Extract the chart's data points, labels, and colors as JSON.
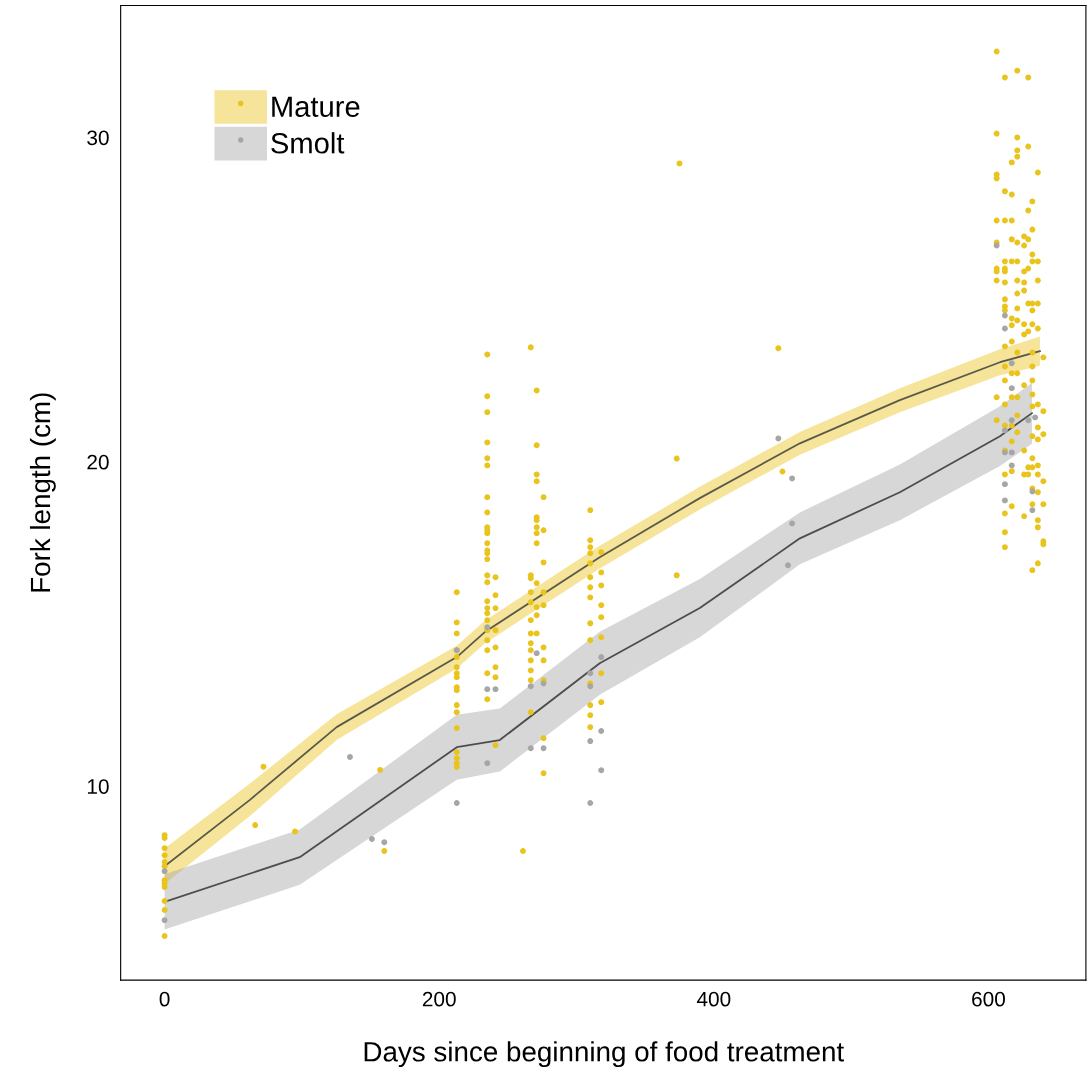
{
  "chart_data": {
    "type": "scatter",
    "xlabel": "Days since beginning of food treatment",
    "ylabel": "Fork length (cm)",
    "xlim": [
      -32,
      671
    ],
    "ylim": [
      4.02,
      34.07
    ],
    "xticks": [
      0,
      200,
      400,
      600
    ],
    "yticks": [
      10,
      20,
      30
    ],
    "grid": false,
    "legend": "top left",
    "marker": "circle",
    "series": [
      {
        "name": "Mature",
        "color": "#e8c41c",
        "x": [
          0,
          0,
          0,
          0,
          0,
          0,
          0,
          0,
          0,
          0,
          0,
          0,
          72,
          66,
          95,
          157,
          160,
          261,
          375,
          373,
          373,
          447,
          450,
          212.8,
          212.8,
          212.8,
          212.8,
          212.8,
          212.8,
          212.8,
          212.8,
          212.8,
          212.8,
          212.8,
          212.8,
          212.8,
          212.8,
          212.8,
          212.8,
          212.8,
          235,
          235,
          235,
          235,
          235,
          235,
          235,
          235,
          235,
          235,
          235,
          235,
          235,
          235,
          235,
          235,
          235,
          235,
          235,
          235,
          235,
          235,
          235,
          235,
          235,
          235,
          241,
          241,
          241,
          241,
          241,
          241,
          241,
          241,
          266.7,
          266.7,
          266.7,
          266.7,
          266.7,
          266.7,
          266.7,
          266.7,
          266.7,
          266.7,
          266.7,
          266.7,
          266.7,
          271,
          271,
          271,
          271,
          271,
          271,
          271,
          271,
          271,
          271,
          271,
          271,
          271,
          276,
          276,
          276,
          276,
          276,
          276,
          276,
          276,
          276,
          276,
          310,
          310,
          310,
          310,
          310,
          310,
          310,
          310,
          310,
          310,
          310,
          310,
          310,
          310,
          318,
          318,
          318,
          318,
          318,
          318,
          318,
          318,
          606,
          606,
          606,
          606,
          606,
          606,
          606,
          606,
          606,
          606,
          606,
          612,
          612,
          612,
          612,
          612,
          612,
          612,
          612,
          612,
          612,
          612,
          612,
          612,
          612,
          612,
          612,
          612,
          612,
          612,
          612,
          617,
          617,
          617,
          617,
          617,
          617,
          617,
          617,
          617,
          617,
          617,
          617,
          617,
          617,
          621,
          621,
          621,
          621,
          621,
          621,
          621,
          621,
          621,
          621,
          621,
          621,
          621,
          621,
          621,
          626,
          626,
          626,
          626,
          626,
          626,
          626,
          626,
          626,
          626,
          626,
          629,
          629,
          629,
          629,
          629,
          629,
          629,
          629,
          629,
          632,
          632,
          632,
          632,
          632,
          632,
          632,
          632,
          632,
          632,
          632,
          632,
          632,
          632,
          632,
          632,
          632,
          632,
          636,
          636,
          636,
          636,
          636,
          636,
          636,
          636,
          636,
          636,
          636,
          636,
          636,
          636,
          640,
          640,
          640,
          640,
          640,
          640,
          640
        ],
        "values": [
          8.49,
          8.4,
          8.09,
          7.87,
          7.66,
          7.53,
          7.1,
          7.0,
          6.89,
          6.46,
          6.18,
          5.38,
          10.6,
          8.8,
          8.6,
          10.5,
          8.0,
          8.0,
          29.2,
          16.5,
          20.1,
          23.5,
          19.7,
          15.98,
          15.05,
          14.71,
          14.19,
          13.98,
          13.67,
          13.48,
          13.36,
          13.05,
          12.96,
          12.5,
          12.28,
          11.79,
          11.05,
          10.86,
          10.71,
          10.59,
          23.31,
          22.02,
          21.53,
          20.6,
          20.11,
          19.89,
          18.91,
          18.44,
          17.98,
          17.89,
          17.8,
          17.49,
          17.27,
          17.18,
          17.0,
          16.5,
          16.29,
          15.7,
          15.49,
          15.33,
          15.12,
          14.81,
          14.5,
          14.19,
          13.48,
          12.68,
          16.44,
          15.89,
          15.49,
          14.81,
          14.28,
          13.67,
          13.36,
          11.26,
          23.53,
          16.5,
          16.41,
          15.98,
          15.67,
          15.12,
          14.71,
          14.41,
          14.19,
          13.88,
          13.57,
          13.27,
          12.28,
          22.2,
          20.51,
          19.61,
          19.4,
          18.29,
          18.2,
          17.98,
          17.8,
          17.49,
          16.26,
          15.52,
          15.27,
          14.71,
          18.91,
          17.89,
          16.9,
          15.98,
          15.58,
          14.28,
          13.88,
          13.27,
          11.48,
          10.4,
          18.51,
          17.58,
          17.37,
          17.18,
          16.87,
          16.44,
          16.13,
          15.82,
          15.02,
          14.5,
          13.17,
          12.5,
          12.19,
          11.82,
          17.21,
          16.59,
          16.19,
          15.58,
          15.21,
          14.59,
          13.48,
          12.59,
          32.65,
          30.12,
          28.86,
          28.74,
          27.44,
          26.76,
          25.96,
          25.87,
          25.59,
          21.99,
          21.28,
          31.85,
          28.34,
          27.44,
          26.18,
          25.96,
          25.87,
          25.53,
          25.01,
          24.79,
          24.67,
          23.56,
          22.94,
          22.51,
          21.77,
          21.12,
          20.35,
          19.61,
          18.41,
          17.83,
          17.37,
          29.23,
          28.24,
          27.44,
          26.86,
          26.18,
          24.42,
          24.21,
          23.71,
          22.73,
          21.99,
          21.12,
          20.63,
          19.71,
          18.63,
          32.06,
          30.0,
          29.6,
          29.41,
          26.76,
          26.18,
          25.59,
          25.19,
          24.73,
          24.36,
          23.37,
          22.73,
          21.99,
          21.43,
          20.91,
          26.95,
          26.67,
          25.87,
          25.53,
          25.28,
          24.24,
          23.93,
          22.36,
          20.35,
          19.61,
          18.32,
          31.85,
          29.72,
          27.75,
          26.86,
          25.96,
          24.88,
          24.02,
          19.83,
          19.61,
          28.03,
          27.16,
          26.39,
          26.18,
          24.88,
          24.67,
          24.24,
          23.37,
          22.94,
          22.51,
          22.08,
          21.71,
          20.79,
          20.11,
          19.83,
          19.18,
          18.69,
          16.66,
          28.92,
          26.18,
          25.59,
          24.88,
          24.11,
          21.77,
          21.06,
          20.69,
          19.89,
          19.61,
          19.06,
          18.2,
          17.98,
          16.87,
          23.22,
          21.56,
          20.85,
          19.4,
          18.69,
          17.55,
          17.46
        ]
      },
      {
        "type": "line",
        "color": "#5a5a4a",
        "marker": "none",
        "x": [
          0,
          61.9,
          125.3,
          212.8,
          233.2,
          316.9,
          389.8,
          462.7,
          535.5,
          608.4,
          637.5
        ],
        "values": [
          7.53,
          9.57,
          11.82,
          13.98,
          14.75,
          17.06,
          18.88,
          20.57,
          21.9,
          23.07,
          23.41
        ],
        "lower": [
          6.98,
          9.07,
          11.42,
          13.63,
          14.4,
          16.71,
          18.53,
          20.22,
          21.53,
          22.67,
          22.96
        ],
        "upper": [
          8.08,
          10.07,
          12.22,
          14.33,
          15.1,
          17.41,
          19.23,
          20.92,
          22.27,
          23.47,
          23.86
        ]
      },
      {
        "name": "Smolt",
        "color": "#a6a6a6",
        "x": [
          0,
          0,
          135,
          151,
          160,
          212.8,
          212.8,
          235,
          235,
          235,
          241,
          266.7,
          266.7,
          271,
          276,
          276,
          310,
          310,
          310,
          310,
          318,
          318,
          318,
          447,
          457,
          457,
          454,
          606,
          612,
          612,
          612,
          612,
          612,
          612,
          617,
          617,
          617,
          617,
          617,
          629,
          632,
          632,
          634
        ],
        "values": [
          7.38,
          5.87,
          10.9,
          8.37,
          8.27,
          14.19,
          9.48,
          14.9,
          12.99,
          10.71,
          12.99,
          13.08,
          11.17,
          14.1,
          13.17,
          11.17,
          13.48,
          13.08,
          11.39,
          9.48,
          13.98,
          11.7,
          10.49,
          20.72,
          19.49,
          18.1,
          16.81,
          26.67,
          24.51,
          24.11,
          20.97,
          20.29,
          19.31,
          18.81,
          23.04,
          22.27,
          21.28,
          20.29,
          19.89,
          21.28,
          19.09,
          18.51,
          21.37
        ]
      },
      {
        "type": "line",
        "color": "#4d4d4d",
        "marker": "none",
        "x": [
          0,
          98.4,
          212.8,
          244.1,
          316.9,
          389.8,
          462.7,
          535.5,
          608.4,
          631.7
        ],
        "values": [
          6.43,
          7.81,
          11.2,
          11.42,
          13.79,
          15.49,
          17.64,
          19.06,
          20.79,
          21.5
        ],
        "lower": [
          5.58,
          6.96,
          10.2,
          10.45,
          12.82,
          14.59,
          16.84,
          18.2,
          19.87,
          20.56
        ],
        "upper": [
          7.28,
          8.66,
          12.2,
          12.39,
          14.76,
          16.39,
          18.44,
          19.92,
          21.71,
          22.44
        ]
      }
    ]
  }
}
